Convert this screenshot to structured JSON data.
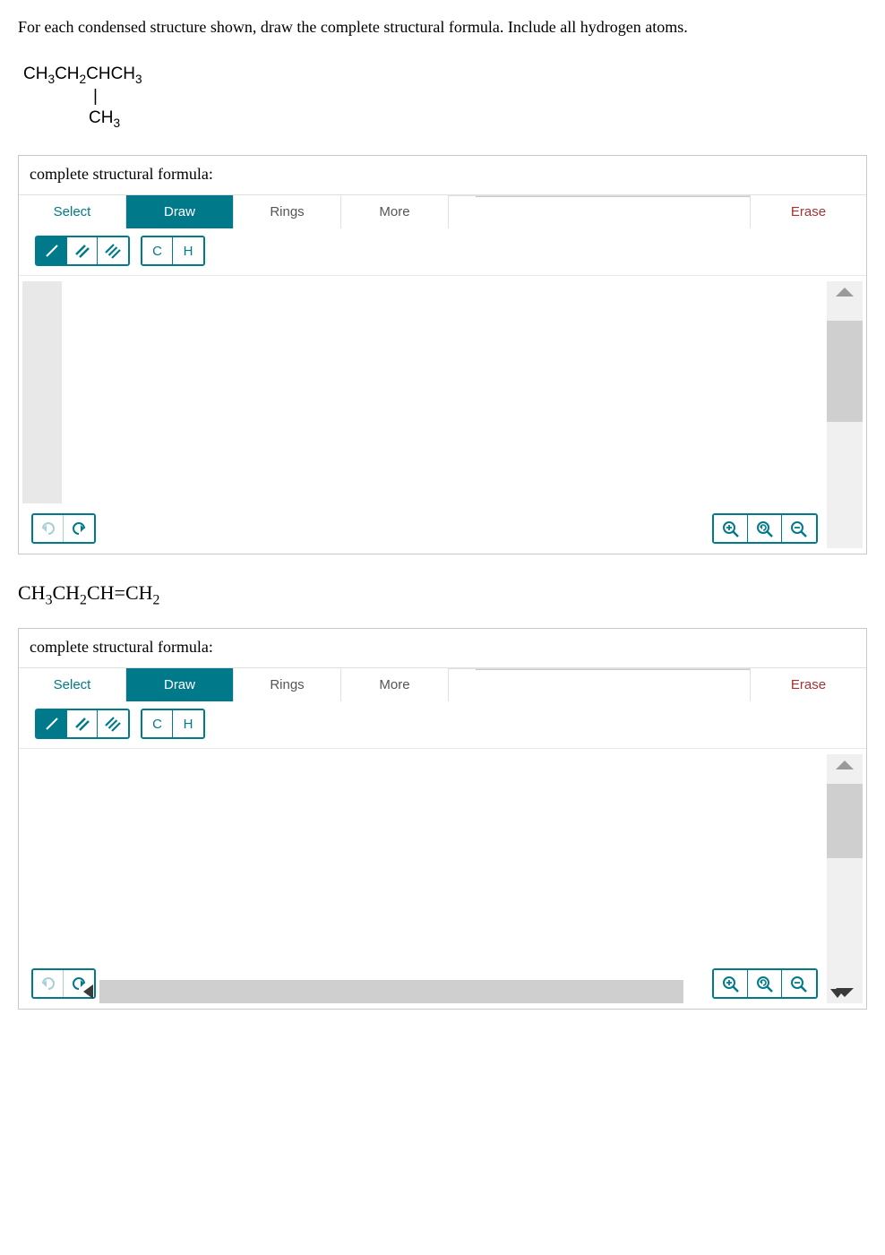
{
  "question_text": "For each condensed structure shown, draw the complete structural formula. Include all hydrogen atoms.",
  "formula1": {
    "line1": "CH₃CH₂CHCH₃",
    "line2_bar": "|",
    "line3": "CH₃"
  },
  "formula2": "CH₃CH₂CH=CH₂",
  "editor": {
    "title": "complete structural formula:",
    "tabs": {
      "select": "Select",
      "draw": "Draw",
      "rings": "Rings",
      "more": "More",
      "erase": "Erase"
    },
    "atoms": {
      "c": "C",
      "h": "H"
    }
  },
  "colors": {
    "teal": "#007a8a",
    "border_gray": "#c8c8c8",
    "scroll_bg": "#f0f0f0",
    "scroll_thumb": "#cfcfcf",
    "erase_red": "#a83232"
  },
  "scroll1": {
    "thumb_top_pct": 8,
    "thumb_height_pct": 45
  },
  "scroll2": {
    "thumb_top_pct": 4,
    "thumb_height_pct": 36
  }
}
